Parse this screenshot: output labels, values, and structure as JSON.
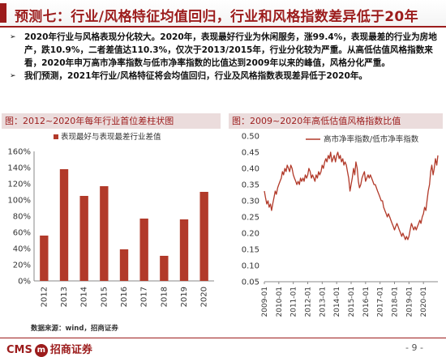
{
  "header": {
    "title": "预测七：行业/风格特征均值回归，行业和风格指数差异低于20年"
  },
  "bullets": [
    "2020年行业与风格表现分化较大。2020年，表现最好行业为休闲服务，涨99.4%，表现最差的行业为房地产，跌10.9%，二者差值达110.3%，仅次于2013/2015年，行业分化较为严重。从高低估值风格指数来看，2020年申万高市净率指数与低市净率指数的比值达到2009年以来的峰值，风格分化严重。",
    "我们预测，2021年行业/风格特征将会均值回归，行业及风格指数表现差异低于2020年。"
  ],
  "bullet_symbol": "➢",
  "panels": {
    "left_title": "图：2012~2020年每年行业首位差柱状图",
    "right_title": "图：2009~2020年高低估值风格指数比值"
  },
  "source": "数据来源：wind，招商证券",
  "footer": {
    "logo_en": "CMS",
    "logo_icon": "m",
    "logo_cn": "招商证券",
    "page": "- 9 -"
  },
  "chart_data": [
    {
      "type": "bar",
      "legend": "表现最好与表现最差行业差值",
      "categories": [
        "2012",
        "2013",
        "2014",
        "2015",
        "2016",
        "2017",
        "2018",
        "2019",
        "2020"
      ],
      "values": [
        0.56,
        1.38,
        1.05,
        1.17,
        0.39,
        0.77,
        0.31,
        0.76,
        1.1
      ],
      "ylim": [
        0,
        1.6
      ],
      "yticks": [
        "0%",
        "20%",
        "40%",
        "60%",
        "80%",
        "100%",
        "120%",
        "140%",
        "160%"
      ],
      "color": "#b23a2a",
      "grid": false,
      "legend_position": "top-left"
    },
    {
      "type": "line",
      "legend": "高市净率指数/低市净率指数",
      "xticks": [
        "2009-01",
        "2010-01",
        "2011-01",
        "2012-01",
        "2013-01",
        "2014-01",
        "2015-01",
        "2016-01",
        "2017-01",
        "2018-01",
        "2019-01",
        "2020-01"
      ],
      "x_start": 2009.0,
      "x_end": 2021.0,
      "ylim": [
        0.05,
        0.5
      ],
      "yticks": [
        "0.05",
        "0.10",
        "0.15",
        "0.20",
        "0.25",
        "0.30",
        "0.35",
        "0.40",
        "0.45",
        "0.50"
      ],
      "color": "#b23a2a",
      "grid": false,
      "legend_position": "top-center",
      "points": [
        [
          2009.0,
          0.33
        ],
        [
          2009.08,
          0.31
        ],
        [
          2009.17,
          0.29
        ],
        [
          2009.25,
          0.3
        ],
        [
          2009.33,
          0.28
        ],
        [
          2009.42,
          0.29
        ],
        [
          2009.5,
          0.27
        ],
        [
          2009.58,
          0.29
        ],
        [
          2009.67,
          0.31
        ],
        [
          2009.75,
          0.33
        ],
        [
          2009.83,
          0.32
        ],
        [
          2009.92,
          0.34
        ],
        [
          2010.0,
          0.35
        ],
        [
          2010.08,
          0.36
        ],
        [
          2010.17,
          0.37
        ],
        [
          2010.25,
          0.39
        ],
        [
          2010.33,
          0.38
        ],
        [
          2010.42,
          0.4
        ],
        [
          2010.5,
          0.39
        ],
        [
          2010.58,
          0.41
        ],
        [
          2010.67,
          0.4
        ],
        [
          2010.75,
          0.39
        ],
        [
          2010.83,
          0.41
        ],
        [
          2010.92,
          0.4
        ],
        [
          2011.0,
          0.38
        ],
        [
          2011.08,
          0.37
        ],
        [
          2011.17,
          0.36
        ],
        [
          2011.25,
          0.35
        ],
        [
          2011.33,
          0.36
        ],
        [
          2011.42,
          0.35
        ],
        [
          2011.5,
          0.37
        ],
        [
          2011.58,
          0.36
        ],
        [
          2011.67,
          0.37
        ],
        [
          2011.75,
          0.36
        ],
        [
          2011.83,
          0.38
        ],
        [
          2011.92,
          0.37
        ],
        [
          2012.0,
          0.38
        ],
        [
          2012.08,
          0.4
        ],
        [
          2012.17,
          0.39
        ],
        [
          2012.25,
          0.37
        ],
        [
          2012.33,
          0.38
        ],
        [
          2012.42,
          0.37
        ],
        [
          2012.5,
          0.36
        ],
        [
          2012.58,
          0.38
        ],
        [
          2012.67,
          0.37
        ],
        [
          2012.75,
          0.39
        ],
        [
          2012.83,
          0.38
        ],
        [
          2012.92,
          0.39
        ],
        [
          2013.0,
          0.41
        ],
        [
          2013.08,
          0.4
        ],
        [
          2013.17,
          0.42
        ],
        [
          2013.25,
          0.43
        ],
        [
          2013.33,
          0.42
        ],
        [
          2013.42,
          0.44
        ],
        [
          2013.5,
          0.43
        ],
        [
          2013.58,
          0.45
        ],
        [
          2013.67,
          0.42
        ],
        [
          2013.75,
          0.43
        ],
        [
          2013.83,
          0.44
        ],
        [
          2013.92,
          0.42
        ],
        [
          2014.0,
          0.44
        ],
        [
          2014.08,
          0.45
        ],
        [
          2014.17,
          0.43
        ],
        [
          2014.25,
          0.44
        ],
        [
          2014.33,
          0.42
        ],
        [
          2014.42,
          0.43
        ],
        [
          2014.5,
          0.41
        ],
        [
          2014.58,
          0.42
        ],
        [
          2014.67,
          0.41
        ],
        [
          2014.75,
          0.39
        ],
        [
          2014.83,
          0.37
        ],
        [
          2014.92,
          0.33
        ],
        [
          2015.0,
          0.35
        ],
        [
          2015.08,
          0.37
        ],
        [
          2015.17,
          0.4
        ],
        [
          2015.25,
          0.38
        ],
        [
          2015.33,
          0.42
        ],
        [
          2015.42,
          0.4
        ],
        [
          2015.5,
          0.36
        ],
        [
          2015.58,
          0.34
        ],
        [
          2015.67,
          0.35
        ],
        [
          2015.75,
          0.37
        ],
        [
          2015.83,
          0.38
        ],
        [
          2015.92,
          0.39
        ],
        [
          2016.0,
          0.36
        ],
        [
          2016.08,
          0.37
        ],
        [
          2016.17,
          0.38
        ],
        [
          2016.25,
          0.37
        ],
        [
          2016.33,
          0.38
        ],
        [
          2016.42,
          0.37
        ],
        [
          2016.5,
          0.36
        ],
        [
          2016.58,
          0.35
        ],
        [
          2016.67,
          0.35
        ],
        [
          2016.75,
          0.34
        ],
        [
          2016.83,
          0.33
        ],
        [
          2016.92,
          0.32
        ],
        [
          2017.0,
          0.31
        ],
        [
          2017.08,
          0.3
        ],
        [
          2017.17,
          0.3
        ],
        [
          2017.25,
          0.28
        ],
        [
          2017.33,
          0.27
        ],
        [
          2017.42,
          0.26
        ],
        [
          2017.5,
          0.25
        ],
        [
          2017.58,
          0.26
        ],
        [
          2017.67,
          0.25
        ],
        [
          2017.75,
          0.24
        ],
        [
          2017.83,
          0.23
        ],
        [
          2017.92,
          0.22
        ],
        [
          2018.0,
          0.21
        ],
        [
          2018.08,
          0.22
        ],
        [
          2018.17,
          0.23
        ],
        [
          2018.25,
          0.22
        ],
        [
          2018.33,
          0.21
        ],
        [
          2018.42,
          0.2
        ],
        [
          2018.5,
          0.19
        ],
        [
          2018.58,
          0.2
        ],
        [
          2018.67,
          0.19
        ],
        [
          2018.75,
          0.18
        ],
        [
          2018.83,
          0.19
        ],
        [
          2018.92,
          0.18
        ],
        [
          2019.0,
          0.19
        ],
        [
          2019.08,
          0.21
        ],
        [
          2019.17,
          0.23
        ],
        [
          2019.25,
          0.22
        ],
        [
          2019.33,
          0.21
        ],
        [
          2019.42,
          0.22
        ],
        [
          2019.5,
          0.21
        ],
        [
          2019.58,
          0.22
        ],
        [
          2019.67,
          0.23
        ],
        [
          2019.75,
          0.24
        ],
        [
          2019.83,
          0.23
        ],
        [
          2019.92,
          0.25
        ],
        [
          2020.0,
          0.26
        ],
        [
          2020.08,
          0.28
        ],
        [
          2020.17,
          0.27
        ],
        [
          2020.25,
          0.3
        ],
        [
          2020.33,
          0.33
        ],
        [
          2020.42,
          0.35
        ],
        [
          2020.5,
          0.39
        ],
        [
          2020.58,
          0.41
        ],
        [
          2020.67,
          0.38
        ],
        [
          2020.75,
          0.4
        ],
        [
          2020.83,
          0.43
        ],
        [
          2020.92,
          0.41
        ],
        [
          2021.0,
          0.44
        ]
      ]
    }
  ]
}
